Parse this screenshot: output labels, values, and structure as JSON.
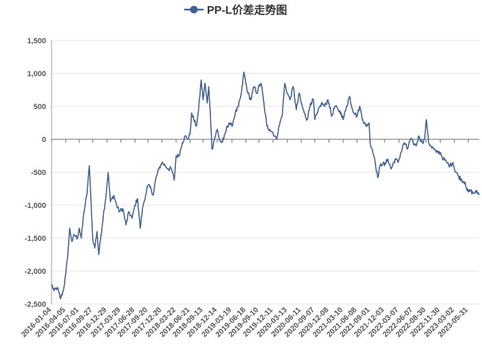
{
  "chart_data": {
    "type": "line",
    "title": "",
    "series": [
      {
        "name": "PP-L价差走势图",
        "color": "#3d5f91",
        "anchors": [
          [
            "2016-01-04",
            -2200
          ],
          [
            "2016-01-20",
            -2300
          ],
          [
            "2016-02-10",
            -2250
          ],
          [
            "2016-03-01",
            -2420
          ],
          [
            "2016-03-20",
            -2300
          ],
          [
            "2016-04-05",
            -2050
          ],
          [
            "2016-04-20",
            -1700
          ],
          [
            "2016-05-01",
            -1350
          ],
          [
            "2016-05-15",
            -1550
          ],
          [
            "2016-06-01",
            -1450
          ],
          [
            "2016-06-20",
            -1500
          ],
          [
            "2016-07-01",
            -1350
          ],
          [
            "2016-07-15",
            -1500
          ],
          [
            "2016-08-01",
            -1100
          ],
          [
            "2016-08-20",
            -850
          ],
          [
            "2016-09-05",
            -400
          ],
          [
            "2016-09-15",
            -900
          ],
          [
            "2016-09-27",
            -1500
          ],
          [
            "2016-10-10",
            -1650
          ],
          [
            "2016-10-25",
            -1400
          ],
          [
            "2016-11-05",
            -1750
          ],
          [
            "2016-11-20",
            -1450
          ],
          [
            "2016-12-05",
            -1150
          ],
          [
            "2016-12-20",
            -900
          ],
          [
            "2017-01-05",
            -500
          ],
          [
            "2017-01-20",
            -950
          ],
          [
            "2017-02-10",
            -850
          ],
          [
            "2017-03-01",
            -1000
          ],
          [
            "2017-03-20",
            -1100
          ],
          [
            "2017-04-10",
            -1050
          ],
          [
            "2017-05-01",
            -1300
          ],
          [
            "2017-05-20",
            -1100
          ],
          [
            "2017-06-10",
            -1200
          ],
          [
            "2017-06-28",
            -1000
          ],
          [
            "2017-07-15",
            -900
          ],
          [
            "2017-08-01",
            -1350
          ],
          [
            "2017-08-20",
            -1000
          ],
          [
            "2017-09-05",
            -850
          ],
          [
            "2017-09-20",
            -700
          ],
          [
            "2017-10-10",
            -750
          ],
          [
            "2017-10-25",
            -850
          ],
          [
            "2017-11-10",
            -600
          ],
          [
            "2017-12-01",
            -450
          ],
          [
            "2017-12-20",
            -350
          ],
          [
            "2018-01-10",
            -400
          ],
          [
            "2018-02-01",
            -450
          ],
          [
            "2018-02-20",
            -450
          ],
          [
            "2018-03-10",
            -620
          ],
          [
            "2018-03-22",
            -250
          ],
          [
            "2018-04-10",
            -250
          ],
          [
            "2018-05-01",
            -50
          ],
          [
            "2018-05-20",
            50
          ],
          [
            "2018-06-05",
            0
          ],
          [
            "2018-06-21",
            80
          ],
          [
            "2018-07-01",
            400
          ],
          [
            "2018-07-15",
            300
          ],
          [
            "2018-08-01",
            200
          ],
          [
            "2018-08-15",
            450
          ],
          [
            "2018-09-01",
            900
          ],
          [
            "2018-09-13",
            600
          ],
          [
            "2018-09-25",
            850
          ],
          [
            "2018-10-10",
            550
          ],
          [
            "2018-10-20",
            800
          ],
          [
            "2018-10-30",
            400
          ],
          [
            "2018-11-10",
            -150
          ],
          [
            "2018-11-25",
            0
          ],
          [
            "2018-12-14",
            150
          ],
          [
            "2018-12-28",
            0
          ],
          [
            "2019-01-10",
            -50
          ],
          [
            "2019-01-25",
            0
          ],
          [
            "2019-02-10",
            150
          ],
          [
            "2019-02-28",
            250
          ],
          [
            "2019-03-19",
            200
          ],
          [
            "2019-04-10",
            400
          ],
          [
            "2019-05-01",
            500
          ],
          [
            "2019-05-20",
            700
          ],
          [
            "2019-06-05",
            1020
          ],
          [
            "2019-06-18",
            850
          ],
          [
            "2019-07-01",
            700
          ],
          [
            "2019-07-20",
            600
          ],
          [
            "2019-08-10",
            800
          ],
          [
            "2019-08-30",
            700
          ],
          [
            "2019-09-10",
            800
          ],
          [
            "2019-09-25",
            850
          ],
          [
            "2019-10-15",
            500
          ],
          [
            "2019-11-01",
            200
          ],
          [
            "2019-11-20",
            150
          ],
          [
            "2019-12-11",
            100
          ],
          [
            "2020-01-01",
            0
          ],
          [
            "2020-01-20",
            200
          ],
          [
            "2020-02-10",
            400
          ],
          [
            "2020-02-25",
            850
          ],
          [
            "2020-03-13",
            700
          ],
          [
            "2020-03-30",
            600
          ],
          [
            "2020-04-20",
            800
          ],
          [
            "2020-05-10",
            450
          ],
          [
            "2020-05-30",
            700
          ],
          [
            "2020-06-11",
            550
          ],
          [
            "2020-06-30",
            400
          ],
          [
            "2020-07-20",
            300
          ],
          [
            "2020-08-10",
            550
          ],
          [
            "2020-08-30",
            600
          ],
          [
            "2020-09-07",
            300
          ],
          [
            "2020-09-25",
            400
          ],
          [
            "2020-10-20",
            550
          ],
          [
            "2020-11-10",
            500
          ],
          [
            "2020-12-01",
            600
          ],
          [
            "2020-12-08",
            550
          ],
          [
            "2020-12-25",
            350
          ],
          [
            "2021-01-15",
            500
          ],
          [
            "2021-02-05",
            450
          ],
          [
            "2021-02-25",
            400
          ],
          [
            "2021-03-10",
            300
          ],
          [
            "2021-04-01",
            500
          ],
          [
            "2021-04-20",
            650
          ],
          [
            "2021-05-10",
            450
          ],
          [
            "2021-06-08",
            350
          ],
          [
            "2021-06-25",
            500
          ],
          [
            "2021-07-15",
            300
          ],
          [
            "2021-08-05",
            200
          ],
          [
            "2021-08-25",
            250
          ],
          [
            "2021-09-01",
            -50
          ],
          [
            "2021-09-15",
            -150
          ],
          [
            "2021-10-01",
            -300
          ],
          [
            "2021-10-20",
            -580
          ],
          [
            "2021-11-05",
            -400
          ],
          [
            "2021-11-25",
            -350
          ],
          [
            "2021-12-03",
            -400
          ],
          [
            "2021-12-25",
            -300
          ],
          [
            "2022-01-15",
            -450
          ],
          [
            "2022-02-10",
            -300
          ],
          [
            "2022-03-01",
            -350
          ],
          [
            "2022-03-20",
            -200
          ],
          [
            "2022-04-10",
            -50
          ],
          [
            "2022-05-01",
            -150
          ],
          [
            "2022-05-20",
            0
          ],
          [
            "2022-06-07",
            -50
          ],
          [
            "2022-06-25",
            -100
          ],
          [
            "2022-07-15",
            50
          ],
          [
            "2022-08-05",
            -50
          ],
          [
            "2022-08-20",
            0
          ],
          [
            "2022-09-01",
            300
          ],
          [
            "2022-09-15",
            -50
          ],
          [
            "2022-10-01",
            -100
          ],
          [
            "2022-10-20",
            -150
          ],
          [
            "2022-11-05",
            -200
          ],
          [
            "2022-11-30",
            -200
          ],
          [
            "2022-12-20",
            -300
          ],
          [
            "2023-01-10",
            -350
          ],
          [
            "2023-02-01",
            -400
          ],
          [
            "2023-02-20",
            -350
          ],
          [
            "2023-03-02",
            -450
          ],
          [
            "2023-03-25",
            -550
          ],
          [
            "2023-04-20",
            -620
          ],
          [
            "2023-05-10",
            -650
          ],
          [
            "2023-05-20",
            -750
          ],
          [
            "2023-05-31",
            -800
          ],
          [
            "2023-06-15",
            -780
          ],
          [
            "2023-07-01",
            -820
          ],
          [
            "2023-07-20",
            -800
          ],
          [
            "2023-08-10",
            -820
          ]
        ]
      }
    ],
    "x_ticks": [
      "2016-01-04",
      "2016-04-05",
      "2016-07-01",
      "2016-09-27",
      "2016-12-29",
      "2017-03-29",
      "2017-06-28",
      "2017-09-20",
      "2017-12-20",
      "2018-03-22",
      "2018-06-21",
      "2018-09-13",
      "2018-12-14",
      "2019-03-19",
      "2019-06-18",
      "2019-09-10",
      "2019-12-11",
      "2020-03-13",
      "2020-06-11",
      "2020-09-07",
      "2020-12-08",
      "2021-03-10",
      "2021-06-08",
      "2021-09-01",
      "2021-12-03",
      "2022-03-07",
      "2022-06-07",
      "2022-08-30",
      "2022-11-30",
      "2023-03-02",
      "2023-05-31"
    ],
    "x_range": [
      "2016-01-04",
      "2023-08-10"
    ],
    "y_ticks": [
      1500,
      1000,
      500,
      0,
      -500,
      -1000,
      -1500,
      -2000,
      -2500
    ],
    "y_tick_labels": [
      "1,500",
      "1,000",
      "500",
      "0",
      "-500",
      "-1,000",
      "-1,500",
      "-2,000",
      "-2,500"
    ],
    "ylim": [
      -2500,
      1500
    ],
    "grid": "horizontal",
    "legend_placement": "top-center"
  }
}
